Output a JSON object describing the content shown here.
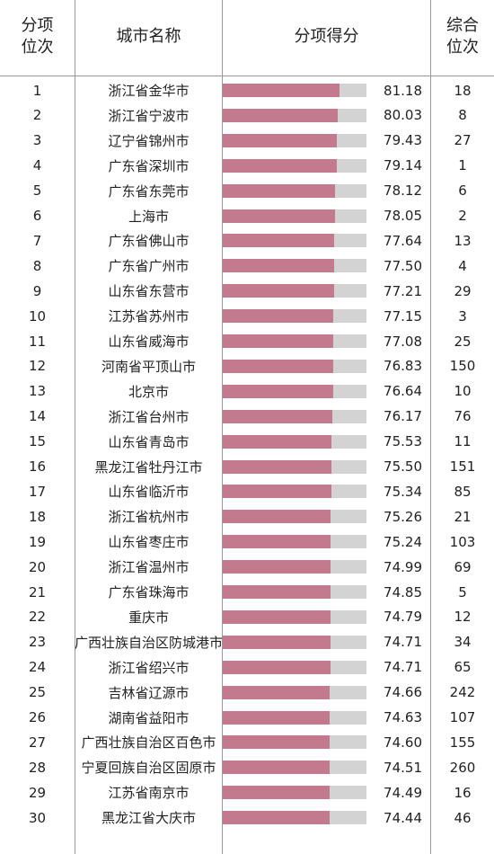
{
  "headers": {
    "rank_line1": "分项",
    "rank_line2": "位次",
    "city": "城市名称",
    "score": "分项得分",
    "overall_line1": "综合",
    "overall_line2": "位次"
  },
  "colors": {
    "bar_fill": "#c47a8e",
    "bar_track": "#d3d3d3",
    "grid": "#9a9a9a"
  },
  "chart_data": {
    "type": "table",
    "columns": [
      "分项位次",
      "城市名称",
      "分项得分",
      "综合位次"
    ],
    "rows": [
      {
        "rank": "1",
        "city": "浙江省金华市",
        "score": "81.18",
        "overall": "18"
      },
      {
        "rank": "2",
        "city": "浙江省宁波市",
        "score": "80.03",
        "overall": "8"
      },
      {
        "rank": "3",
        "city": "辽宁省锦州市",
        "score": "79.43",
        "overall": "27"
      },
      {
        "rank": "4",
        "city": "广东省深圳市",
        "score": "79.14",
        "overall": "1"
      },
      {
        "rank": "5",
        "city": "广东省东莞市",
        "score": "78.12",
        "overall": "6"
      },
      {
        "rank": "6",
        "city": "上海市",
        "score": "78.05",
        "overall": "2"
      },
      {
        "rank": "7",
        "city": "广东省佛山市",
        "score": "77.64",
        "overall": "13"
      },
      {
        "rank": "8",
        "city": "广东省广州市",
        "score": "77.50",
        "overall": "4"
      },
      {
        "rank": "9",
        "city": "山东省东营市",
        "score": "77.21",
        "overall": "29"
      },
      {
        "rank": "10",
        "city": "江苏省苏州市",
        "score": "77.15",
        "overall": "3"
      },
      {
        "rank": "11",
        "city": "山东省威海市",
        "score": "77.08",
        "overall": "25"
      },
      {
        "rank": "12",
        "city": "河南省平顶山市",
        "score": "76.83",
        "overall": "150"
      },
      {
        "rank": "13",
        "city": "北京市",
        "score": "76.64",
        "overall": "10"
      },
      {
        "rank": "14",
        "city": "浙江省台州市",
        "score": "76.17",
        "overall": "76"
      },
      {
        "rank": "15",
        "city": "山东省青岛市",
        "score": "75.53",
        "overall": "11"
      },
      {
        "rank": "16",
        "city": "黑龙江省牡丹江市",
        "score": "75.50",
        "overall": "151"
      },
      {
        "rank": "17",
        "city": "山东省临沂市",
        "score": "75.34",
        "overall": "85"
      },
      {
        "rank": "18",
        "city": "浙江省杭州市",
        "score": "75.26",
        "overall": "21"
      },
      {
        "rank": "19",
        "city": "山东省枣庄市",
        "score": "75.24",
        "overall": "103"
      },
      {
        "rank": "20",
        "city": "浙江省温州市",
        "score": "74.99",
        "overall": "69"
      },
      {
        "rank": "21",
        "city": "广东省珠海市",
        "score": "74.85",
        "overall": "5"
      },
      {
        "rank": "22",
        "city": "重庆市",
        "score": "74.79",
        "overall": "12"
      },
      {
        "rank": "23",
        "city": "广西壮族自治区防城港市",
        "score": "74.71",
        "overall": "34"
      },
      {
        "rank": "24",
        "city": "浙江省绍兴市",
        "score": "74.71",
        "overall": "65"
      },
      {
        "rank": "25",
        "city": "吉林省辽源市",
        "score": "74.66",
        "overall": "242"
      },
      {
        "rank": "26",
        "city": "湖南省益阳市",
        "score": "74.63",
        "overall": "107"
      },
      {
        "rank": "27",
        "city": "广西壮族自治区百色市",
        "score": "74.60",
        "overall": "155"
      },
      {
        "rank": "28",
        "city": "宁夏回族自治区固原市",
        "score": "74.51",
        "overall": "260"
      },
      {
        "rank": "29",
        "city": "江苏省南京市",
        "score": "74.49",
        "overall": "16"
      },
      {
        "rank": "30",
        "city": "黑龙江省大庆市",
        "score": "74.44",
        "overall": "46"
      }
    ],
    "bar_scale_max": 100
  }
}
